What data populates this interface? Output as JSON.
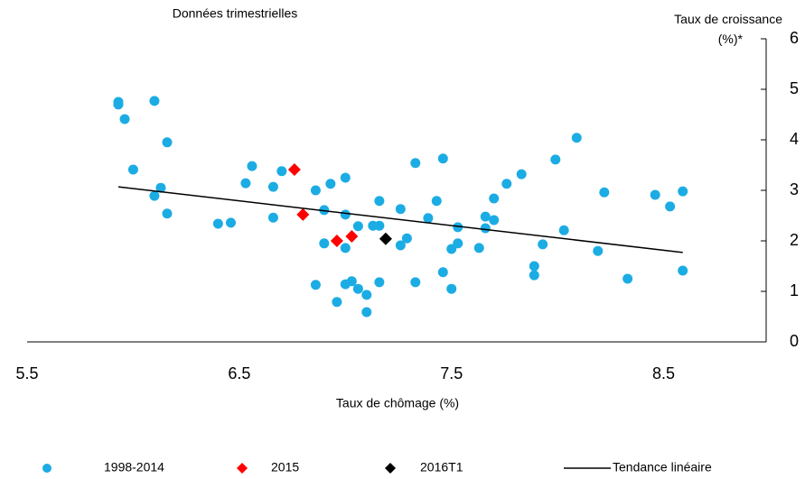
{
  "chart_data": {
    "type": "scatter",
    "title": "Données trimestrielles",
    "x_label": "Taux de chômage (%)",
    "y_label": "Taux de croissance (%)*",
    "xlim": [
      5.5,
      9.0
    ],
    "xticks": [
      5.5,
      6.5,
      7.5,
      8.5
    ],
    "ylim": [
      0,
      6
    ],
    "yticks": [
      0,
      1,
      2,
      3,
      4,
      5,
      6
    ],
    "legend": "bottom",
    "series": [
      {
        "name": "1998-2014",
        "color": "#1cace4",
        "marker": "circle",
        "x": [
          5.93,
          5.93,
          5.96,
          6.0,
          6.1,
          6.16,
          6.13,
          6.1,
          6.16,
          6.4,
          6.46,
          6.53,
          6.56,
          6.66,
          6.7,
          6.66,
          6.86,
          6.93,
          7.0,
          6.9,
          7.0,
          7.06,
          6.9,
          7.0,
          6.86,
          7.0,
          7.03,
          7.06,
          7.1,
          6.96,
          7.1,
          7.16,
          7.13,
          7.16,
          7.16,
          7.26,
          7.26,
          7.29,
          7.33,
          7.33,
          7.39,
          7.43,
          7.46,
          7.46,
          7.5,
          7.5,
          7.53,
          7.53,
          7.63,
          7.66,
          7.66,
          7.7,
          7.7,
          7.76,
          7.83,
          7.89,
          7.89,
          7.93,
          7.99,
          8.03,
          8.09,
          8.19,
          8.22,
          8.33,
          8.46,
          8.53,
          8.59,
          8.59
        ],
        "values": [
          4.75,
          4.7,
          4.41,
          3.41,
          4.77,
          3.95,
          3.05,
          2.89,
          2.54,
          2.34,
          2.36,
          3.14,
          3.48,
          3.07,
          3.38,
          2.46,
          3.0,
          3.13,
          3.25,
          2.61,
          2.52,
          2.29,
          1.95,
          1.86,
          1.13,
          1.14,
          1.2,
          1.05,
          0.93,
          0.79,
          0.59,
          1.18,
          2.3,
          2.3,
          2.79,
          2.63,
          1.91,
          2.05,
          3.54,
          1.18,
          2.45,
          2.79,
          3.63,
          1.38,
          1.05,
          1.84,
          2.27,
          1.95,
          1.86,
          2.48,
          2.25,
          2.41,
          2.84,
          3.13,
          3.32,
          1.5,
          1.32,
          1.93,
          3.61,
          2.21,
          4.04,
          1.8,
          2.96,
          1.25,
          2.91,
          2.68,
          2.98,
          1.41
        ]
      },
      {
        "name": "2015",
        "color": "#ff0000",
        "marker": "diamond",
        "x": [
          6.76,
          6.8,
          6.96,
          7.03
        ],
        "values": [
          3.41,
          2.52,
          2.0,
          2.09
        ]
      },
      {
        "name": "2016T1",
        "color": "#000000",
        "marker": "diamond",
        "x": [
          7.19
        ],
        "values": [
          2.04
        ]
      },
      {
        "name": "Tendance linéaire",
        "color": "#000000",
        "marker": "line",
        "x": [
          5.93,
          8.59
        ],
        "values": [
          3.07,
          1.77
        ]
      }
    ]
  }
}
